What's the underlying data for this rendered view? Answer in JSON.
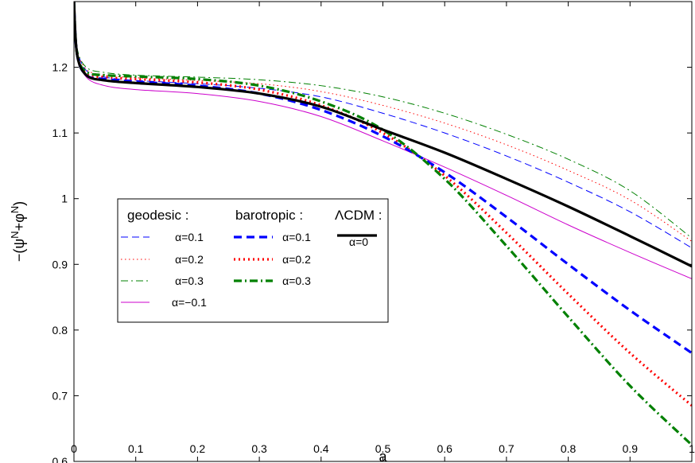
{
  "chart_data": {
    "type": "line",
    "xlabel": "a",
    "ylabel": "−(ψ",
    "ylabel_sup1": "N",
    "ylabel_mid": "+φ",
    "ylabel_sup2": "N",
    "ylabel_end": ")",
    "xlim": [
      0,
      1
    ],
    "ylim": [
      0.6,
      1.3
    ],
    "xticks": [
      0,
      0.1,
      0.2,
      0.3,
      0.4,
      0.5,
      0.6,
      0.7,
      0.8,
      0.9,
      1
    ],
    "xtick_labels": [
      "0",
      "0.1",
      "0.2",
      "0.3",
      "0.4",
      "0.5",
      "0.6",
      "0.7",
      "0.8",
      "0.9",
      "1"
    ],
    "yticks": [
      0.6,
      0.7,
      0.8,
      0.9,
      1.0,
      1.1,
      1.2
    ],
    "ytick_labels": [
      "0.6",
      "0.7",
      "0.8",
      "0.9",
      "1",
      "1.1",
      "1.2"
    ],
    "grid": false,
    "legend_position": "left-middle",
    "legend_groups": [
      {
        "title": "geodesic :",
        "series": [
          "g1",
          "g2",
          "g3",
          "gm1"
        ]
      },
      {
        "title": "barotropic :",
        "series": [
          "b1",
          "b2",
          "b3"
        ]
      },
      {
        "title": "ΛCDM :",
        "series": [
          "lcdm"
        ]
      }
    ],
    "series": [
      {
        "id": "g1",
        "name": "α=0.1",
        "color": "#0000ff",
        "style": "dashed",
        "width": "thin",
        "x": [
          0.0,
          0.005,
          0.02,
          0.05,
          0.1,
          0.2,
          0.3,
          0.4,
          0.5,
          0.6,
          0.7,
          0.8,
          0.9,
          1.0
        ],
        "y": [
          1.3,
          1.23,
          1.195,
          1.185,
          1.18,
          1.175,
          1.168,
          1.155,
          1.13,
          1.1,
          1.065,
          1.025,
          0.98,
          0.925
        ]
      },
      {
        "id": "g2",
        "name": "α=0.2",
        "color": "#ff0000",
        "style": "dotted",
        "width": "thin",
        "x": [
          0.0,
          0.005,
          0.02,
          0.05,
          0.1,
          0.2,
          0.3,
          0.4,
          0.5,
          0.6,
          0.7,
          0.8,
          0.9,
          1.0
        ],
        "y": [
          1.3,
          1.23,
          1.197,
          1.188,
          1.184,
          1.18,
          1.175,
          1.163,
          1.142,
          1.115,
          1.082,
          1.043,
          0.998,
          0.935
        ]
      },
      {
        "id": "g3",
        "name": "α=0.3",
        "color": "#008000",
        "style": "dashdot",
        "width": "thin",
        "x": [
          0.0,
          0.005,
          0.02,
          0.05,
          0.1,
          0.2,
          0.3,
          0.4,
          0.5,
          0.6,
          0.7,
          0.8,
          0.9,
          1.0
        ],
        "y": [
          1.3,
          1.23,
          1.2,
          1.192,
          1.188,
          1.185,
          1.181,
          1.172,
          1.155,
          1.13,
          1.098,
          1.06,
          1.012,
          0.94
        ]
      },
      {
        "id": "gm1",
        "name": "α=−0.1",
        "color": "#cc00cc",
        "style": "solid",
        "width": "thin",
        "x": [
          0.0,
          0.005,
          0.02,
          0.05,
          0.1,
          0.2,
          0.3,
          0.4,
          0.5,
          0.6,
          0.7,
          0.8,
          0.9,
          1.0
        ],
        "y": [
          1.3,
          1.22,
          1.185,
          1.172,
          1.166,
          1.16,
          1.148,
          1.125,
          1.088,
          1.048,
          1.005,
          0.96,
          0.918,
          0.878
        ]
      },
      {
        "id": "b1",
        "name": "α=0.1",
        "color": "#0000ff",
        "style": "dashed",
        "width": "thick",
        "x": [
          0.0,
          0.005,
          0.02,
          0.05,
          0.1,
          0.2,
          0.3,
          0.4,
          0.5,
          0.6,
          0.7,
          0.8,
          0.9,
          1.0
        ],
        "y": [
          1.3,
          1.22,
          1.188,
          1.182,
          1.178,
          1.172,
          1.16,
          1.135,
          1.095,
          1.04,
          0.972,
          0.9,
          0.83,
          0.765
        ]
      },
      {
        "id": "b2",
        "name": "α=0.2",
        "color": "#ff0000",
        "style": "dotted",
        "width": "thick",
        "x": [
          0.0,
          0.005,
          0.02,
          0.05,
          0.1,
          0.2,
          0.3,
          0.4,
          0.5,
          0.6,
          0.7,
          0.8,
          0.9,
          1.0
        ],
        "y": [
          1.3,
          1.22,
          1.19,
          1.185,
          1.182,
          1.177,
          1.166,
          1.142,
          1.1,
          1.035,
          0.948,
          0.855,
          0.765,
          0.685
        ]
      },
      {
        "id": "b3",
        "name": "α=0.3",
        "color": "#008000",
        "style": "dashdot",
        "width": "thick",
        "x": [
          0.0,
          0.005,
          0.02,
          0.05,
          0.1,
          0.2,
          0.3,
          0.4,
          0.5,
          0.6,
          0.7,
          0.8,
          0.9,
          1.0
        ],
        "y": [
          1.3,
          1.22,
          1.193,
          1.188,
          1.186,
          1.182,
          1.172,
          1.148,
          1.105,
          1.03,
          0.928,
          0.82,
          0.715,
          0.625
        ]
      },
      {
        "id": "lcdm",
        "name": "α=0",
        "color": "#000000",
        "style": "solid",
        "width": "thick",
        "x": [
          0.0,
          0.005,
          0.02,
          0.05,
          0.1,
          0.2,
          0.3,
          0.4,
          0.5,
          0.6,
          0.7,
          0.8,
          0.9,
          1.0
        ],
        "y": [
          1.3,
          1.22,
          1.188,
          1.18,
          1.176,
          1.17,
          1.16,
          1.14,
          1.105,
          1.07,
          1.03,
          0.988,
          0.943,
          0.897
        ]
      }
    ]
  }
}
